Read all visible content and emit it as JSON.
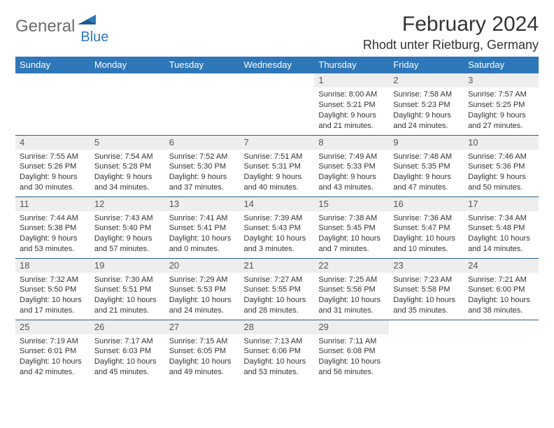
{
  "brand": {
    "part1": "General",
    "part2": "Blue"
  },
  "title": "February 2024",
  "location": "Rhodt unter Rietburg, Germany",
  "colors": {
    "header_bg": "#2e77b8",
    "header_text": "#ffffff",
    "daynum_bg": "#eeeeee",
    "cell_border": "#2e5d88",
    "body_text": "#333333",
    "logo_gray": "#6b6b6b",
    "background": "#ffffff"
  },
  "dayNames": [
    "Sunday",
    "Monday",
    "Tuesday",
    "Wednesday",
    "Thursday",
    "Friday",
    "Saturday"
  ],
  "startWeekday": 4,
  "numDays": 29,
  "days": {
    "1": {
      "sunrise": "8:00 AM",
      "sunset": "5:21 PM",
      "daylight": "9 hours and 21 minutes."
    },
    "2": {
      "sunrise": "7:58 AM",
      "sunset": "5:23 PM",
      "daylight": "9 hours and 24 minutes."
    },
    "3": {
      "sunrise": "7:57 AM",
      "sunset": "5:25 PM",
      "daylight": "9 hours and 27 minutes."
    },
    "4": {
      "sunrise": "7:55 AM",
      "sunset": "5:26 PM",
      "daylight": "9 hours and 30 minutes."
    },
    "5": {
      "sunrise": "7:54 AM",
      "sunset": "5:28 PM",
      "daylight": "9 hours and 34 minutes."
    },
    "6": {
      "sunrise": "7:52 AM",
      "sunset": "5:30 PM",
      "daylight": "9 hours and 37 minutes."
    },
    "7": {
      "sunrise": "7:51 AM",
      "sunset": "5:31 PM",
      "daylight": "9 hours and 40 minutes."
    },
    "8": {
      "sunrise": "7:49 AM",
      "sunset": "5:33 PM",
      "daylight": "9 hours and 43 minutes."
    },
    "9": {
      "sunrise": "7:48 AM",
      "sunset": "5:35 PM",
      "daylight": "9 hours and 47 minutes."
    },
    "10": {
      "sunrise": "7:46 AM",
      "sunset": "5:36 PM",
      "daylight": "9 hours and 50 minutes."
    },
    "11": {
      "sunrise": "7:44 AM",
      "sunset": "5:38 PM",
      "daylight": "9 hours and 53 minutes."
    },
    "12": {
      "sunrise": "7:43 AM",
      "sunset": "5:40 PM",
      "daylight": "9 hours and 57 minutes."
    },
    "13": {
      "sunrise": "7:41 AM",
      "sunset": "5:41 PM",
      "daylight": "10 hours and 0 minutes."
    },
    "14": {
      "sunrise": "7:39 AM",
      "sunset": "5:43 PM",
      "daylight": "10 hours and 3 minutes."
    },
    "15": {
      "sunrise": "7:38 AM",
      "sunset": "5:45 PM",
      "daylight": "10 hours and 7 minutes."
    },
    "16": {
      "sunrise": "7:36 AM",
      "sunset": "5:47 PM",
      "daylight": "10 hours and 10 minutes."
    },
    "17": {
      "sunrise": "7:34 AM",
      "sunset": "5:48 PM",
      "daylight": "10 hours and 14 minutes."
    },
    "18": {
      "sunrise": "7:32 AM",
      "sunset": "5:50 PM",
      "daylight": "10 hours and 17 minutes."
    },
    "19": {
      "sunrise": "7:30 AM",
      "sunset": "5:51 PM",
      "daylight": "10 hours and 21 minutes."
    },
    "20": {
      "sunrise": "7:29 AM",
      "sunset": "5:53 PM",
      "daylight": "10 hours and 24 minutes."
    },
    "21": {
      "sunrise": "7:27 AM",
      "sunset": "5:55 PM",
      "daylight": "10 hours and 28 minutes."
    },
    "22": {
      "sunrise": "7:25 AM",
      "sunset": "5:56 PM",
      "daylight": "10 hours and 31 minutes."
    },
    "23": {
      "sunrise": "7:23 AM",
      "sunset": "5:58 PM",
      "daylight": "10 hours and 35 minutes."
    },
    "24": {
      "sunrise": "7:21 AM",
      "sunset": "6:00 PM",
      "daylight": "10 hours and 38 minutes."
    },
    "25": {
      "sunrise": "7:19 AM",
      "sunset": "6:01 PM",
      "daylight": "10 hours and 42 minutes."
    },
    "26": {
      "sunrise": "7:17 AM",
      "sunset": "6:03 PM",
      "daylight": "10 hours and 45 minutes."
    },
    "27": {
      "sunrise": "7:15 AM",
      "sunset": "6:05 PM",
      "daylight": "10 hours and 49 minutes."
    },
    "28": {
      "sunrise": "7:13 AM",
      "sunset": "6:06 PM",
      "daylight": "10 hours and 53 minutes."
    },
    "29": {
      "sunrise": "7:11 AM",
      "sunset": "6:08 PM",
      "daylight": "10 hours and 56 minutes."
    }
  }
}
